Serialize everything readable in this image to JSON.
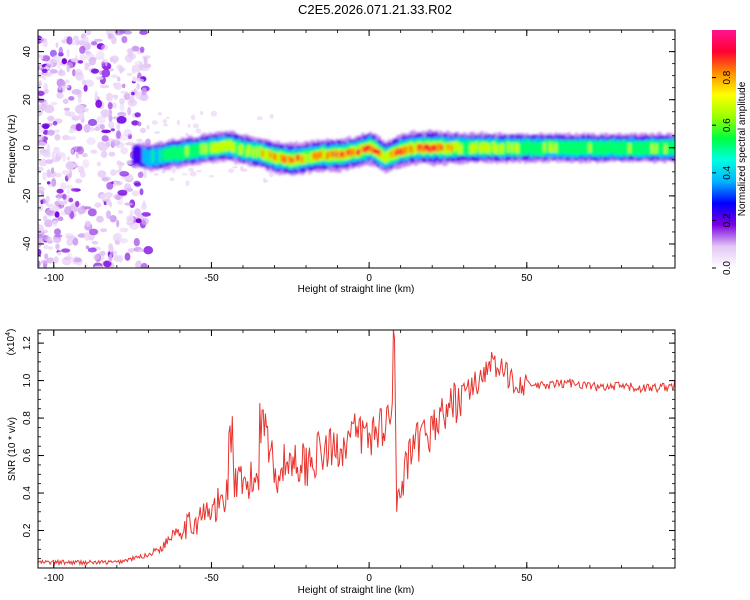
{
  "title": "C2E5.2026.071.21.33.R02",
  "colors": {
    "snr_line": "#e8342e",
    "axis": "#000000"
  },
  "chart_data": [
    {
      "type": "heatmap",
      "xlabel": "Height of straight line (km)",
      "ylabel": "Frequency (Hz)",
      "xlim": [
        -105,
        97
      ],
      "ylim": [
        -50,
        49
      ],
      "xticks": [
        -100,
        -50,
        0,
        50
      ],
      "yticks": [
        -40,
        -20,
        0,
        20,
        40
      ],
      "colorbar": {
        "label": "Normalized spectral amplitude",
        "range": [
          0,
          1
        ],
        "ticks": [
          0.0,
          0.2,
          0.4,
          0.6,
          0.8
        ],
        "colormap": [
          "#ffffff",
          "#e3c6f5",
          "#7a00e0",
          "#0000ff",
          "#00b4ff",
          "#00ffe0",
          "#00ff40",
          "#9cff00",
          "#ffff00",
          "#ff9000",
          "#ff0030",
          "#ff1493"
        ]
      },
      "noise_region_x": [
        -105,
        -70
      ],
      "ridge": {
        "x": [
          -75,
          -70,
          -65,
          -60,
          -55,
          -50,
          -45,
          -40,
          -35,
          -30,
          -25,
          -20,
          -15,
          -10,
          -5,
          0,
          5,
          10,
          15,
          20,
          25,
          30,
          40,
          50,
          60,
          70,
          80,
          90,
          97
        ],
        "freq": [
          -3,
          -4,
          -3,
          -2,
          -1,
          0,
          1,
          -1,
          -2,
          -4,
          -5,
          -4,
          -3,
          -3,
          -2,
          0,
          -4,
          -1,
          0,
          0,
          0,
          0,
          0,
          0,
          0,
          0,
          0,
          0,
          0
        ],
        "amp": [
          0.3,
          0.45,
          0.55,
          0.6,
          0.6,
          0.65,
          0.7,
          0.65,
          0.7,
          0.8,
          0.85,
          0.75,
          0.8,
          0.85,
          0.8,
          0.9,
          0.75,
          0.9,
          0.85,
          0.95,
          0.8,
          0.7,
          0.65,
          0.62,
          0.6,
          0.6,
          0.6,
          0.6,
          0.6
        ]
      }
    },
    {
      "type": "line",
      "xlabel": "Height of straight line (km)",
      "ylabel": "SNR (10 * v/v)",
      "y_multiplier": "(x10",
      "y_multiplier_exp": "4",
      "y_multiplier_close": ")",
      "xlim": [
        -105,
        97
      ],
      "ylim": [
        0,
        1.27
      ],
      "xticks": [
        -100,
        -50,
        0,
        50
      ],
      "yticks": [
        0.2,
        0.4,
        0.6,
        0.8,
        1.0,
        1.2
      ],
      "series": [
        {
          "x": [
            -105,
            -90,
            -80,
            -75,
            -70,
            -65,
            -62,
            -58,
            -55,
            -52,
            -48,
            -45,
            -44,
            -43,
            -40,
            -38,
            -35,
            -34,
            -30,
            -27,
            -24,
            -20,
            -17,
            -14,
            -10,
            -7,
            -4,
            0,
            3,
            6,
            7,
            8,
            9,
            12,
            15,
            20,
            25,
            30,
            35,
            38,
            42,
            46,
            50,
            55,
            60,
            65,
            70,
            75,
            80,
            85,
            90,
            95,
            97
          ],
          "y": [
            0.03,
            0.03,
            0.03,
            0.05,
            0.07,
            0.12,
            0.2,
            0.22,
            0.25,
            0.28,
            0.32,
            0.4,
            0.8,
            0.45,
            0.42,
            0.44,
            0.5,
            0.88,
            0.5,
            0.55,
            0.58,
            0.55,
            0.6,
            0.62,
            0.64,
            0.68,
            0.72,
            0.7,
            0.75,
            0.8,
            0.78,
            1.27,
            0.3,
            0.55,
            0.65,
            0.75,
            0.85,
            0.93,
            1.0,
            1.1,
            1.05,
            1.0,
            0.98,
            0.97,
            0.98,
            0.99,
            0.97,
            0.96,
            0.97,
            0.96,
            0.96,
            0.97,
            0.98
          ]
        }
      ]
    }
  ]
}
